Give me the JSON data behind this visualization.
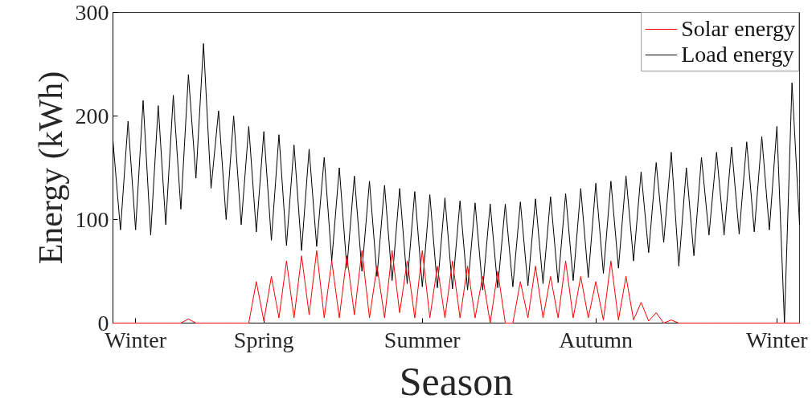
{
  "chart_data": {
    "type": "line",
    "xlabel": "Season",
    "ylabel": "Energy (kWh)",
    "categories": [
      null,
      null,
      null,
      "Winter",
      null,
      null,
      null,
      null,
      null,
      null,
      null,
      null,
      null,
      null,
      null,
      null,
      null,
      null,
      null,
      null,
      "Spring",
      null,
      null,
      null,
      null,
      null,
      null,
      null,
      null,
      null,
      null,
      null,
      null,
      null,
      null,
      null,
      null,
      null,
      null,
      null,
      null,
      "Summer",
      null,
      null,
      null,
      null,
      null,
      null,
      null,
      null,
      null,
      null,
      null,
      null,
      null,
      null,
      null,
      null,
      null,
      null,
      null,
      null,
      null,
      null,
      "Autumn",
      null,
      null,
      null,
      null,
      null,
      null,
      null,
      null,
      null,
      null,
      null,
      null,
      null,
      null,
      null,
      null,
      null,
      null,
      null,
      null,
      null,
      null,
      null,
      "Winter",
      null,
      null,
      null
    ],
    "ylim": [
      0,
      300
    ],
    "yticks": [
      0,
      100,
      200,
      300
    ],
    "grid": false,
    "legend": "top right",
    "line_style": "solid",
    "series": [
      {
        "name": "Solar energy",
        "color": "#ff0000",
        "values": [
          0,
          0,
          0,
          0,
          0,
          0,
          0,
          0,
          0,
          0,
          4,
          0,
          0,
          0,
          0,
          0,
          0,
          0,
          0,
          40,
          2,
          45,
          5,
          60,
          5,
          65,
          8,
          70,
          5,
          60,
          5,
          65,
          8,
          70,
          5,
          55,
          5,
          70,
          10,
          60,
          5,
          70,
          5,
          55,
          5,
          60,
          5,
          55,
          5,
          45,
          0,
          50,
          0,
          0,
          40,
          5,
          55,
          5,
          45,
          5,
          60,
          5,
          45,
          5,
          40,
          3,
          60,
          3,
          45,
          3,
          20,
          2,
          10,
          0,
          3,
          0,
          0,
          0,
          0,
          0,
          0,
          0,
          0,
          0,
          0,
          0,
          0,
          0,
          0,
          0,
          0,
          0
        ]
      },
      {
        "name": "Load energy",
        "color": "#000000",
        "values": [
          176,
          90,
          195,
          90,
          215,
          85,
          210,
          95,
          220,
          110,
          240,
          140,
          270,
          130,
          205,
          100,
          200,
          95,
          190,
          88,
          185,
          80,
          182,
          75,
          172,
          70,
          168,
          74,
          160,
          60,
          150,
          53,
          142,
          50,
          137,
          45,
          133,
          41,
          130,
          38,
          127,
          35,
          124,
          34,
          121,
          33,
          118,
          32,
          116,
          32,
          115,
          34,
          115,
          35,
          117,
          36,
          120,
          38,
          122,
          39,
          125,
          41,
          130,
          44,
          135,
          48,
          137,
          53,
          142,
          60,
          146,
          68,
          155,
          78,
          165,
          55,
          150,
          65,
          160,
          85,
          165,
          85,
          170,
          86,
          175,
          88,
          180,
          90,
          190,
          0,
          232,
          95
        ]
      }
    ]
  }
}
